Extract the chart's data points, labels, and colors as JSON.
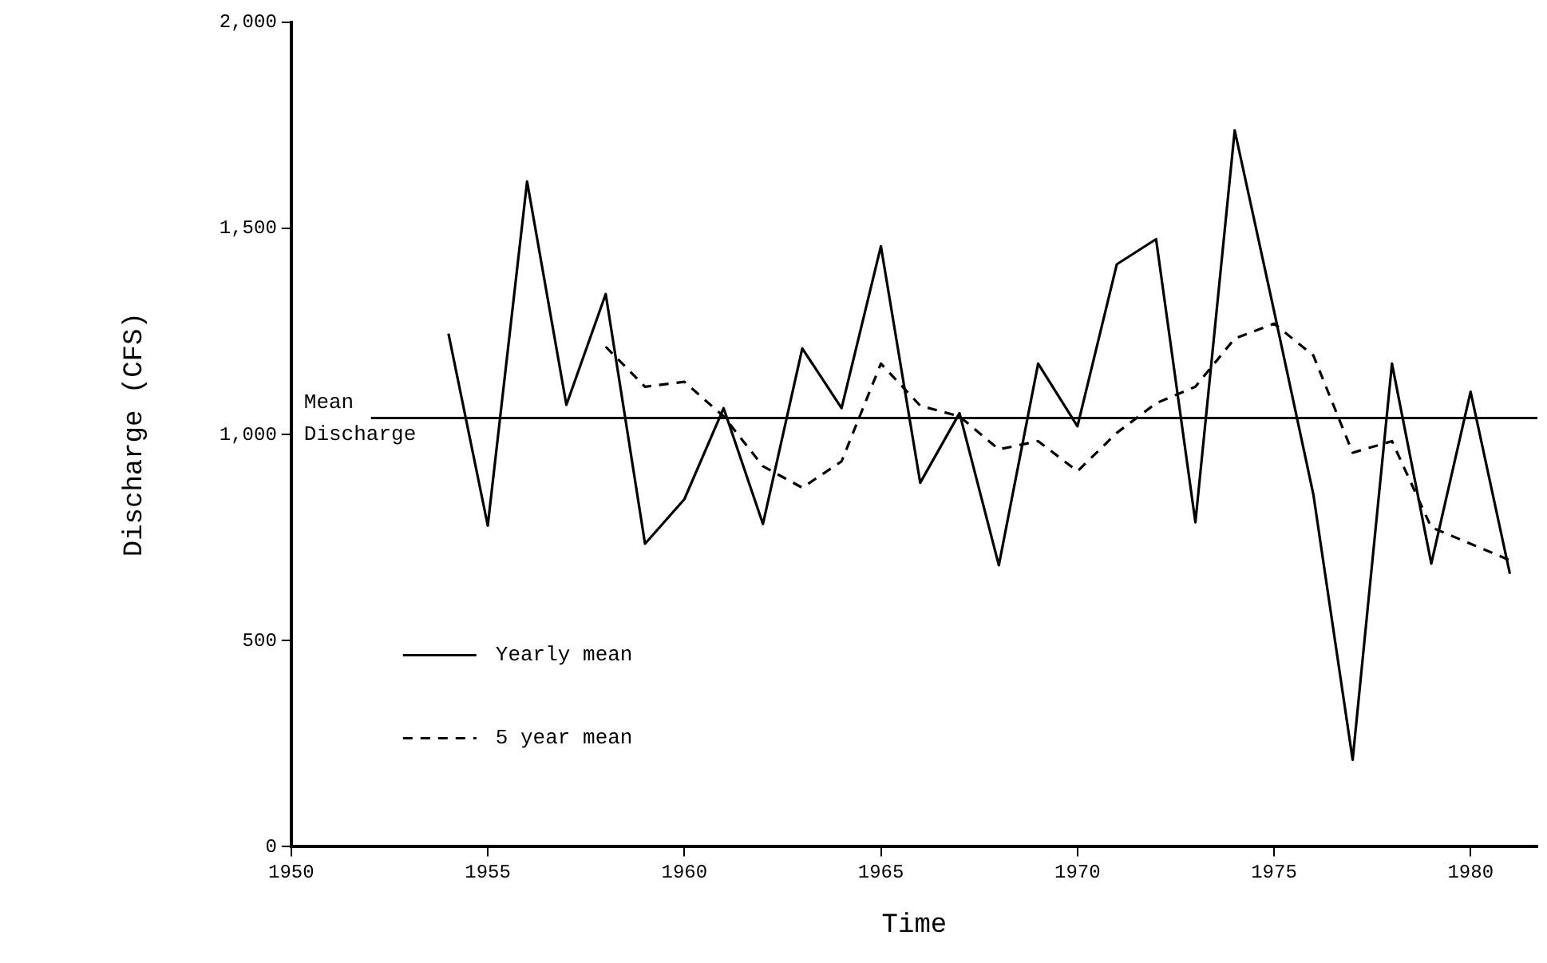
{
  "chart_data": {
    "type": "line",
    "xlabel": "Time",
    "ylabel": "Discharge (CFS)",
    "xlim": [
      1950,
      1981.7
    ],
    "xticks": [
      1950,
      1955,
      1960,
      1965,
      1970,
      1975,
      1980
    ],
    "ylim": [
      0,
      2000
    ],
    "yticks": [
      0,
      {
        "value": 500,
        "label": "500"
      },
      {
        "value": 1000,
        "label": "1,000"
      },
      {
        "value": 1500,
        "label": "1,500"
      },
      {
        "value": 2000,
        "label": "2,000"
      }
    ],
    "grid": false,
    "legend": "bottom left",
    "marker": "none",
    "ref_lines": [
      {
        "axis": "y",
        "value": 1040,
        "label": "Mean Discharge",
        "color": "#000000",
        "line_style": "solid"
      }
    ],
    "series": [
      {
        "name": "Yearly mean",
        "color": "#000000",
        "line_style": "solid",
        "x": [
          1954,
          1955,
          1956,
          1957,
          1958,
          1959,
          1960,
          1961,
          1962,
          1963,
          1964,
          1965,
          1966,
          1967,
          1968,
          1969,
          1970,
          1971,
          1972,
          1973,
          1974,
          1975,
          1976,
          1977,
          1978,
          1979,
          1980,
          1981
        ],
        "values": [
          1245,
          779,
          1614,
          1072,
          1341,
          735,
          843,
          1064,
          783,
          1209,
          1064,
          1457,
          883,
          1052,
          683,
          1172,
          1020,
          1413,
          1474,
          787,
          1738,
          1300,
          855,
          211,
          1172,
          687,
          1104,
          662
        ]
      },
      {
        "name": "5 year mean",
        "color": "#000000",
        "line_style": "dashed",
        "x": [
          1958,
          1959,
          1960,
          1961,
          1962,
          1963,
          1964,
          1965,
          1966,
          1967,
          1968,
          1969,
          1970,
          1971,
          1972,
          1973,
          1974,
          1975,
          1976,
          1977,
          1978,
          1979,
          1980,
          1981
        ],
        "values": [
          1213,
          1116,
          1128,
          1044,
          923,
          871,
          935,
          1172,
          1070,
          1044,
          964,
          984,
          911,
          1004,
          1076,
          1116,
          1233,
          1269,
          1192,
          956,
          984,
          775,
          735,
          695
        ]
      }
    ]
  }
}
